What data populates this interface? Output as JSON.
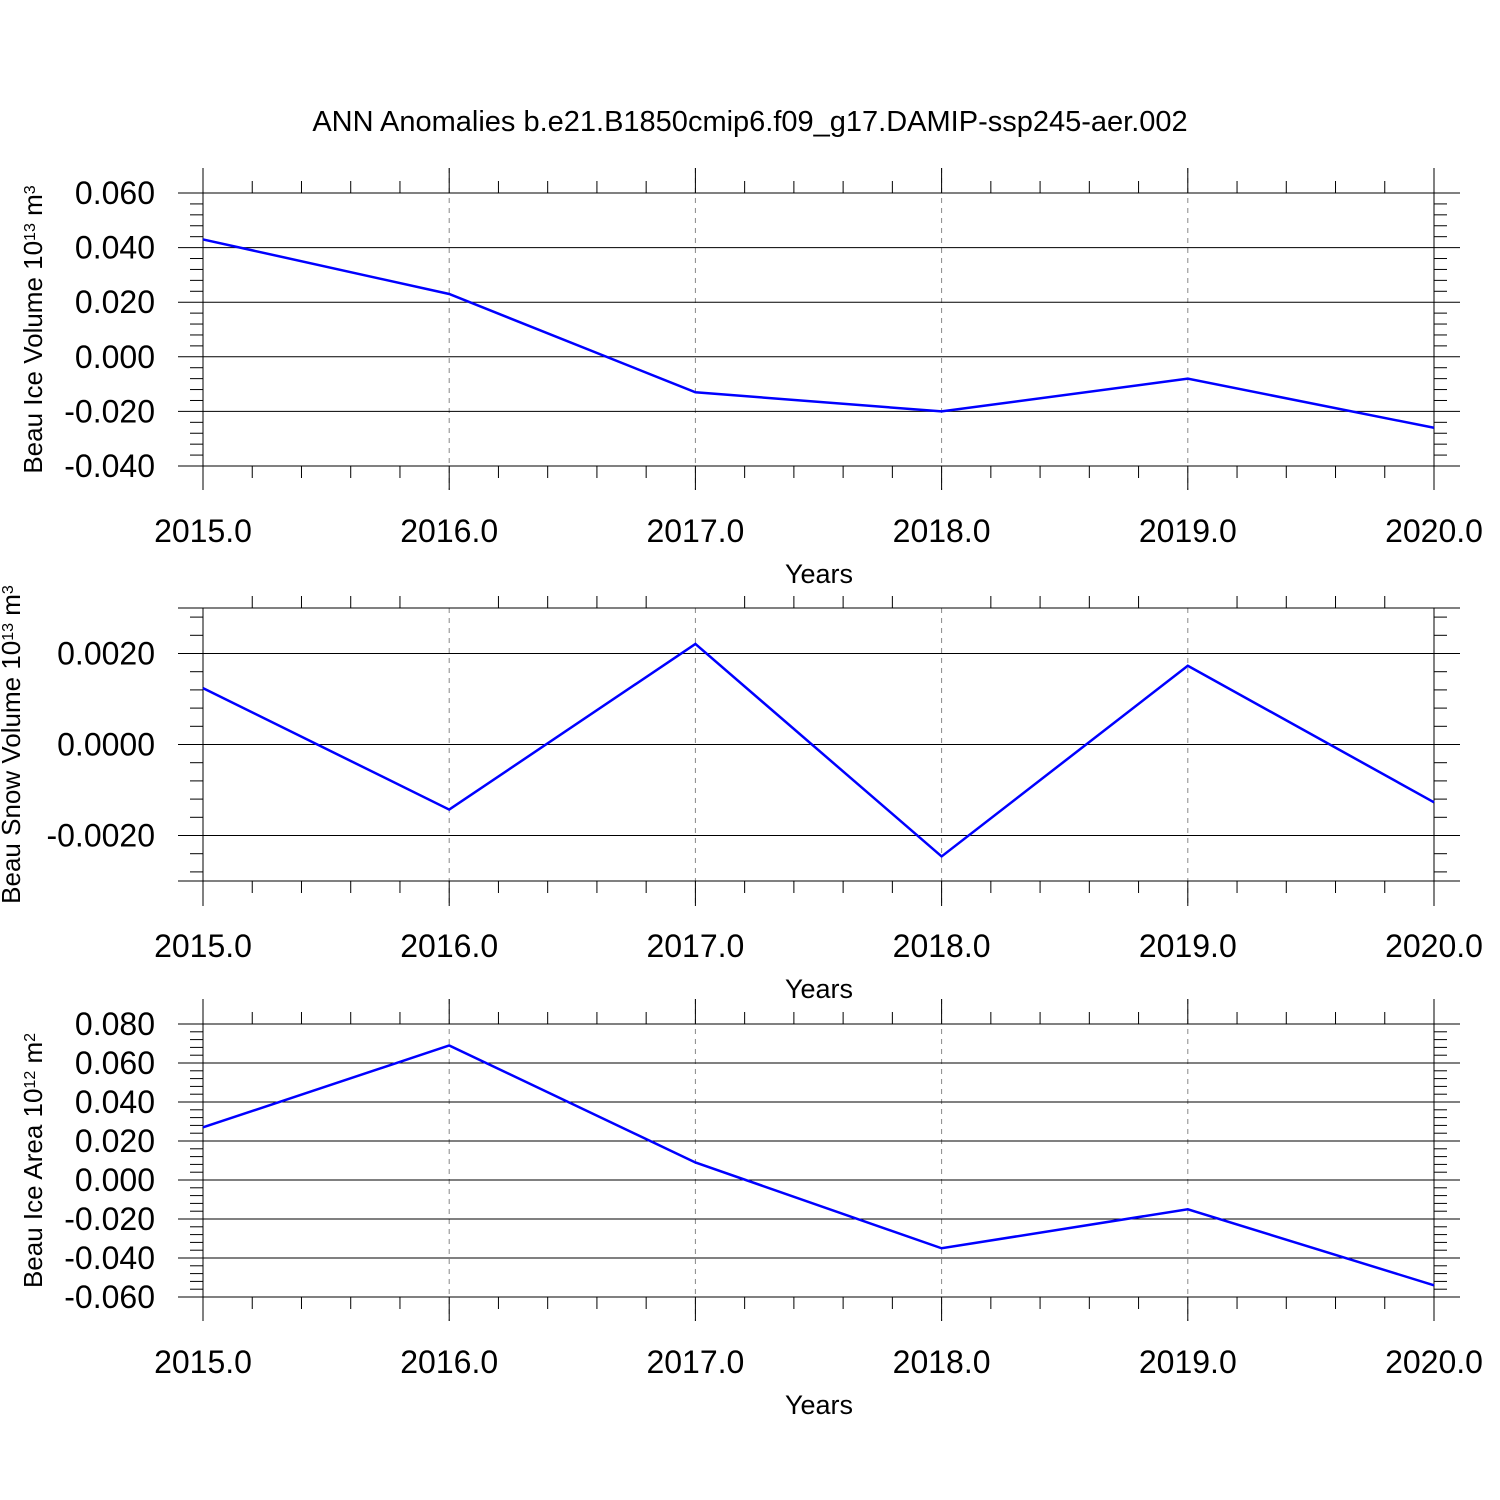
{
  "figure": {
    "title": "ANN Anomalies b.e21.B1850cmip6.f09_g17.DAMIP-ssp245-aer.002",
    "line_color": "#0000ff",
    "grid_color": "#888888",
    "axis_color": "#000000"
  },
  "chart_data": [
    {
      "type": "line",
      "title": "",
      "xlabel": "Years",
      "ylabel_parts": {
        "before": "Beau Ice Volume 10",
        "exponent": "13",
        "middle": " m",
        "unit_exponent": "3"
      },
      "x": [
        2015,
        2016,
        2017,
        2018,
        2019,
        2020
      ],
      "xtick_labels": [
        "2015.0",
        "2016.0",
        "2017.0",
        "2018.0",
        "2019.0",
        "2020.0"
      ],
      "xlim": [
        2015,
        2020
      ],
      "series": [
        {
          "values": [
            0.043,
            0.023,
            -0.013,
            -0.02,
            -0.008,
            -0.026
          ]
        }
      ],
      "ylim": [
        -0.04,
        0.06
      ],
      "yticks": [
        -0.04,
        -0.02,
        0.0,
        0.02,
        0.04,
        0.06
      ],
      "ytick_labels": [
        "-0.040",
        "-0.020",
        "0.000",
        "0.020",
        "0.040",
        "0.060"
      ],
      "grid": "vertical dashed"
    },
    {
      "type": "line",
      "title": "",
      "xlabel": "Years",
      "ylabel_parts": {
        "before": "Beau Snow Volume 10",
        "exponent": "13",
        "middle": " m",
        "unit_exponent": "3"
      },
      "x": [
        2015,
        2016,
        2017,
        2018,
        2019,
        2020
      ],
      "xtick_labels": [
        "2015.0",
        "2016.0",
        "2017.0",
        "2018.0",
        "2019.0",
        "2020.0"
      ],
      "xlim": [
        2015,
        2020
      ],
      "series": [
        {
          "values": [
            0.00124,
            -0.00143,
            0.00221,
            -0.00246,
            0.00173,
            -0.00127
          ]
        }
      ],
      "ylim": [
        -0.003,
        0.003
      ],
      "yticks": [
        -0.002,
        0.0,
        0.002
      ],
      "ytick_labels": [
        "-0.0020",
        "0.0000",
        "0.0020"
      ],
      "grid": "vertical dashed"
    },
    {
      "type": "line",
      "title": "",
      "xlabel": "Years",
      "ylabel_parts": {
        "before": "Beau Ice Area 10",
        "exponent": "12",
        "middle": " m",
        "unit_exponent": "2"
      },
      "x": [
        2015,
        2016,
        2017,
        2018,
        2019,
        2020
      ],
      "xtick_labels": [
        "2015.0",
        "2016.0",
        "2017.0",
        "2018.0",
        "2019.0",
        "2020.0"
      ],
      "xlim": [
        2015,
        2020
      ],
      "series": [
        {
          "values": [
            0.027,
            0.069,
            0.009,
            -0.035,
            -0.015,
            -0.054
          ]
        }
      ],
      "ylim": [
        -0.06,
        0.08
      ],
      "yticks": [
        -0.06,
        -0.04,
        -0.02,
        0.0,
        0.02,
        0.04,
        0.06,
        0.08
      ],
      "ytick_labels": [
        "-0.060",
        "-0.040",
        "-0.020",
        "0.000",
        "0.020",
        "0.040",
        "0.060",
        "0.080"
      ],
      "grid": "vertical dashed"
    }
  ]
}
